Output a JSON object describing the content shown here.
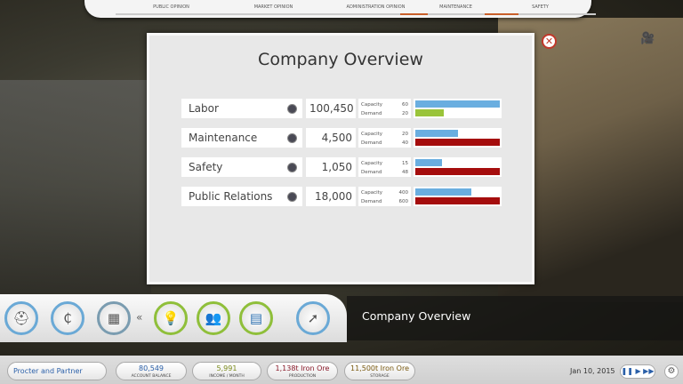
{
  "top_tabs": [
    {
      "label": "PUBLIC OPINION",
      "level": 0
    },
    {
      "label": "MARKET OPINION",
      "level": 0
    },
    {
      "label": "ADMINISTRATION OPINION",
      "level": 0
    },
    {
      "label": "MAINTENANCE",
      "level": 0.25
    },
    {
      "label": "SAFETY",
      "level": 0.3
    }
  ],
  "modal": {
    "title": "Company Overview",
    "capacity_label": "Capacity",
    "demand_label": "Demand",
    "rows": [
      {
        "name": "Labor",
        "icon": "worker-icon",
        "value": "100,450",
        "capacity": 60,
        "demand": 20,
        "demand_color": "#9ac43a"
      },
      {
        "name": "Maintenance",
        "icon": "wrench-icon",
        "value": "4,500",
        "capacity": 20,
        "demand": 40,
        "demand_color": "#a50d0d"
      },
      {
        "name": "Safety",
        "icon": "helmet-icon",
        "value": "1,050",
        "capacity": 15,
        "demand": 48,
        "demand_color": "#a50d0d"
      },
      {
        "name": "Public Relations",
        "icon": "tree-icon",
        "value": "18,000",
        "capacity": 400,
        "demand": 600,
        "demand_color": "#a50d0d"
      }
    ],
    "capacity_color": "#6aaee0"
  },
  "panel_title": "Company Overview",
  "status": {
    "company": "Procter and Partner",
    "balance": "80,549",
    "balance_label": "ACCOUNT BALANCE",
    "income": "5,991",
    "income_label": "INCOME / MONTH",
    "production": "1,138t Iron Ore",
    "production_label": "PRODUCTION",
    "storage": "11,500t Iron Ore",
    "storage_label": "STORAGE",
    "date": "Jan 10, 2015",
    "speed_controls": "❚❚ ▶ ▶▶",
    "chevron": "«"
  }
}
